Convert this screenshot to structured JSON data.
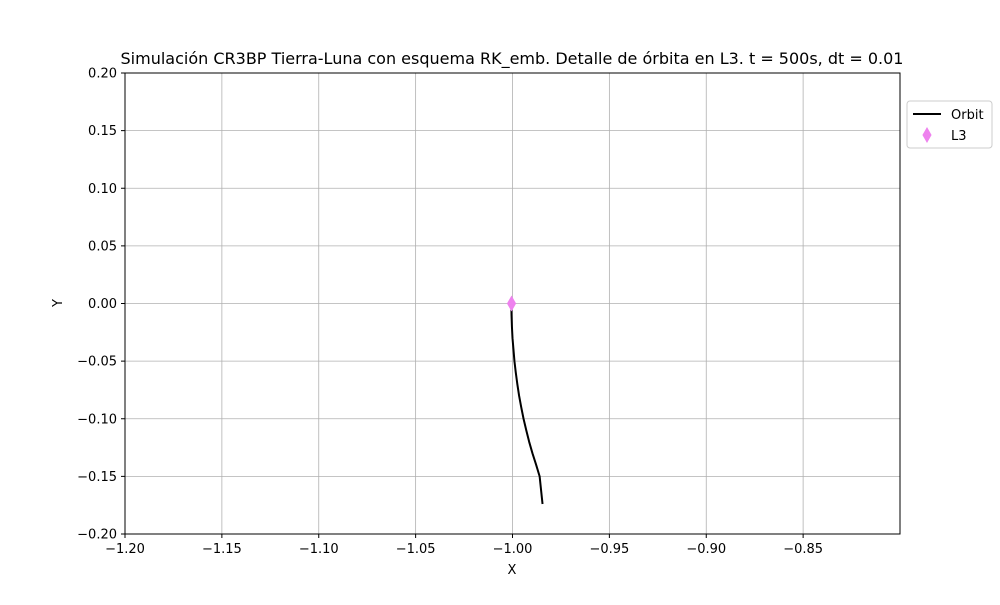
{
  "chart_data": {
    "type": "line",
    "title": "Simulación CR3BP Tierra-Luna con esquema RK_emb. Detalle de órbita en L3. t = 500s, dt = 0.01",
    "xlabel": "X",
    "ylabel": "Y",
    "xlim": [
      -1.2,
      -0.8
    ],
    "ylim": [
      -0.2,
      0.2
    ],
    "xticks": [
      -1.2,
      -1.15,
      -1.1,
      -1.05,
      -1.0,
      -0.95,
      -0.9,
      -0.85
    ],
    "xtick_labels": [
      "−1.20",
      "−1.15",
      "−1.10",
      "−1.05",
      "−1.00",
      "−0.95",
      "−0.90",
      "−0.85"
    ],
    "yticks": [
      -0.2,
      -0.15,
      -0.1,
      -0.05,
      0.0,
      0.05,
      0.1,
      0.15,
      0.2
    ],
    "ytick_labels": [
      "−0.20",
      "−0.15",
      "−0.10",
      "−0.05",
      "0.00",
      "0.05",
      "0.10",
      "0.15",
      "0.20"
    ],
    "grid": true,
    "legend_position": "outside top-right",
    "series": [
      {
        "name": "Orbit",
        "kind": "line",
        "color": "#000000",
        "x": [
          -1.0006,
          -1.0005,
          -1.0003,
          -1.0,
          -0.9995,
          -0.999,
          -0.9983,
          -0.9975,
          -0.9966,
          -0.9955,
          -0.9943,
          -0.9929,
          -0.9914,
          -0.9897,
          -0.9878,
          -0.986,
          -0.9845
        ],
        "y": [
          0.0,
          -0.01,
          -0.02,
          -0.03,
          -0.04,
          -0.05,
          -0.06,
          -0.07,
          -0.08,
          -0.09,
          -0.1,
          -0.11,
          -0.12,
          -0.13,
          -0.14,
          -0.15,
          -0.174
        ]
      },
      {
        "name": "L3",
        "kind": "marker",
        "marker": "thin-diamond",
        "color": "#ee82ee",
        "x": [
          -1.0005
        ],
        "y": [
          0.0
        ]
      }
    ]
  }
}
